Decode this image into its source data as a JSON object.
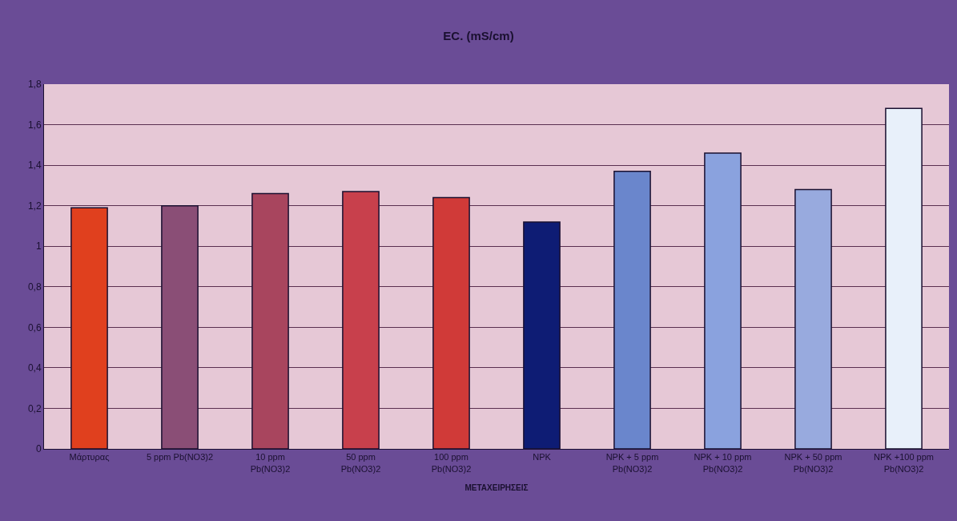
{
  "chart_data": {
    "type": "bar",
    "title": "EC. (mS/cm)",
    "xlabel": "ΜΕΤΑΧΕΙΡΗΣΕΙΣ",
    "categories": [
      "Μάρτυρας",
      "5 ppm Pb(NO3)2",
      "10 ppm Pb(NO3)2",
      "50 ppm Pb(NO3)2",
      "100 ppm Pb(NO3)2",
      "NPK",
      "NPK + 5 ppm Pb(NO3)2",
      "NPK + 10 ppm Pb(NO3)2",
      "NPK + 50 ppm Pb(NO3)2",
      "NPK +100 ppm Pb(NO3)2"
    ],
    "values": [
      1.19,
      1.2,
      1.26,
      1.27,
      1.24,
      1.12,
      1.37,
      1.46,
      1.28,
      1.68
    ],
    "colors": [
      "#e0401e",
      "#8a4e76",
      "#a8455e",
      "#c8404c",
      "#d03a38",
      "#0e1c74",
      "#6a86cc",
      "#8aa2de",
      "#98aade",
      "#e8f0fa"
    ],
    "ylim": [
      0,
      1.8
    ],
    "yticks": [
      {
        "value": 0,
        "label": "0"
      },
      {
        "value": 0.2,
        "label": "0,2"
      },
      {
        "value": 0.4,
        "label": "0,4"
      },
      {
        "value": 0.6,
        "label": "0,6"
      },
      {
        "value": 0.8,
        "label": "0,8"
      },
      {
        "value": 1,
        "label": "1"
      },
      {
        "value": 1.2,
        "label": "1,2"
      },
      {
        "value": 1.4,
        "label": "1,4"
      },
      {
        "value": 1.6,
        "label": "1,6"
      },
      {
        "value": 1.8,
        "label": "1,8"
      }
    ],
    "grid": "y",
    "legend": false
  }
}
